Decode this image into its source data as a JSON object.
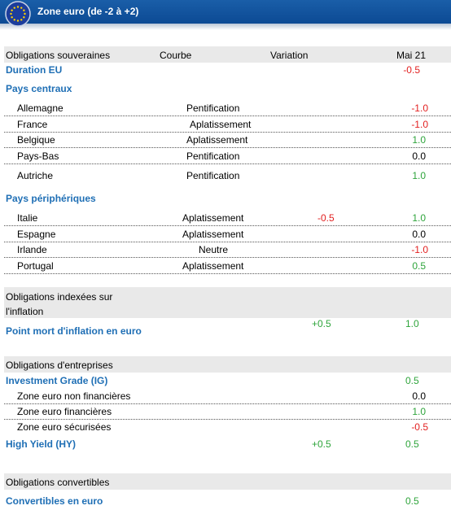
{
  "header": {
    "title": "Zone euro (de -2 à +2)"
  },
  "columns": {
    "c1": "Obligations souveraines",
    "c2": "Courbe",
    "c3": "Variation",
    "c4": "Mai 21"
  },
  "duration": {
    "label": "Duration EU",
    "value": "-0.5"
  },
  "central": {
    "title": "Pays centraux",
    "rows": [
      {
        "country": "Allemagne",
        "curve": "Pentification",
        "variation": "",
        "value": "-1.0",
        "color": "red"
      },
      {
        "country": "France",
        "curve": "Aplatissement",
        "variation": "",
        "value": "-1.0",
        "color": "red"
      },
      {
        "country": "Belgique",
        "curve": "Aplatissement",
        "variation": "",
        "value": "1.0",
        "color": "green"
      },
      {
        "country": "Pays-Bas",
        "curve": "Pentification",
        "variation": "",
        "value": "0.0",
        "color": "black"
      },
      {
        "country": "Autriche",
        "curve": "Pentification",
        "variation": "",
        "value": "1.0",
        "color": "green"
      }
    ]
  },
  "peripheral": {
    "title": "Pays périphériques",
    "rows": [
      {
        "country": "Italie",
        "curve": "Aplatissement",
        "variation": "-0.5",
        "value": "1.0",
        "color": "green"
      },
      {
        "country": "Espagne",
        "curve": "Aplatissement",
        "variation": "",
        "value": "0.0",
        "color": "black"
      },
      {
        "country": "Irlande",
        "curve": "Neutre",
        "variation": "",
        "value": "-1.0",
        "color": "red"
      },
      {
        "country": "Portugal",
        "curve": "Aplatissement",
        "variation": "",
        "value": "0.5",
        "color": "green"
      }
    ]
  },
  "inflation": {
    "section_line1": "Obligations indexées sur",
    "section_line2": "l'inflation",
    "label": "Point mort d'inflation  en euro",
    "variation": "+0.5",
    "value": "1.0"
  },
  "corporate": {
    "section": "Obligations d'entreprises",
    "ig_label": "Investment Grade (IG)",
    "ig_value": "0.5",
    "rows": [
      {
        "label": "Zone euro non financières",
        "value": "0.0",
        "color": "black"
      },
      {
        "label": "Zone euro financières",
        "value": "1.0",
        "color": "green"
      },
      {
        "label": "Zone euro sécurisées",
        "value": "-0.5",
        "color": "red"
      }
    ],
    "hy_label": "High Yield (HY)",
    "hy_variation": "+0.5",
    "hy_value": "0.5"
  },
  "convertibles": {
    "section": "Obligations convertibles",
    "label": "Convertibles en euro",
    "value": "0.5"
  },
  "colors": {
    "header_blue": "#0c4a94",
    "label_blue": "#1f6fb5",
    "red": "#e21f1f",
    "green": "#2ea43b",
    "section_gray": "#e9e9e9"
  }
}
